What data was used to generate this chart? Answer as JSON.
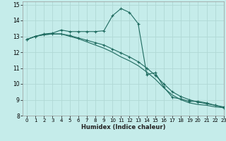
{
  "xlabel": "Humidex (Indice chaleur)",
  "bg_color": "#c5ecea",
  "grid_color": "#b0d8d5",
  "line_color": "#1f6b60",
  "xlim": [
    -0.5,
    23
  ],
  "ylim": [
    8,
    15.2
  ],
  "yticks": [
    8,
    9,
    10,
    11,
    12,
    13,
    14,
    15
  ],
  "xticks": [
    0,
    1,
    2,
    3,
    4,
    5,
    6,
    7,
    8,
    9,
    10,
    11,
    12,
    13,
    14,
    15,
    16,
    17,
    18,
    19,
    20,
    21,
    22,
    23
  ],
  "series1_x": [
    0,
    1,
    2,
    3,
    4,
    5,
    6,
    7,
    8,
    9,
    10,
    11,
    12,
    13,
    14,
    15,
    16,
    17,
    18,
    19,
    20,
    21,
    22,
    23
  ],
  "series1_y": [
    12.8,
    13.0,
    13.15,
    13.2,
    13.4,
    13.3,
    13.3,
    13.3,
    13.3,
    13.35,
    14.3,
    14.75,
    14.5,
    13.8,
    10.6,
    10.7,
    9.8,
    9.15,
    9.05,
    8.9,
    8.9,
    8.8,
    8.65,
    8.5
  ],
  "series2_x": [
    0,
    1,
    2,
    3,
    4,
    5,
    6,
    7,
    8,
    9,
    10,
    11,
    12,
    13,
    14,
    15,
    16,
    17,
    18,
    19,
    20,
    21,
    22,
    23
  ],
  "series2_y": [
    12.8,
    13.0,
    13.1,
    13.15,
    13.15,
    13.05,
    12.9,
    12.75,
    12.6,
    12.45,
    12.2,
    11.95,
    11.7,
    11.4,
    11.0,
    10.55,
    10.0,
    9.5,
    9.2,
    9.0,
    8.85,
    8.75,
    8.65,
    8.55
  ],
  "series3_x": [
    0,
    1,
    2,
    3,
    4,
    5,
    6,
    7,
    8,
    9,
    10,
    11,
    12,
    13,
    14,
    15,
    16,
    17,
    18,
    19,
    20,
    21,
    22,
    23
  ],
  "series3_y": [
    12.8,
    13.0,
    13.1,
    13.15,
    13.15,
    13.0,
    12.85,
    12.65,
    12.45,
    12.25,
    12.0,
    11.7,
    11.45,
    11.15,
    10.75,
    10.3,
    9.75,
    9.3,
    9.0,
    8.8,
    8.7,
    8.65,
    8.55,
    8.5
  ]
}
